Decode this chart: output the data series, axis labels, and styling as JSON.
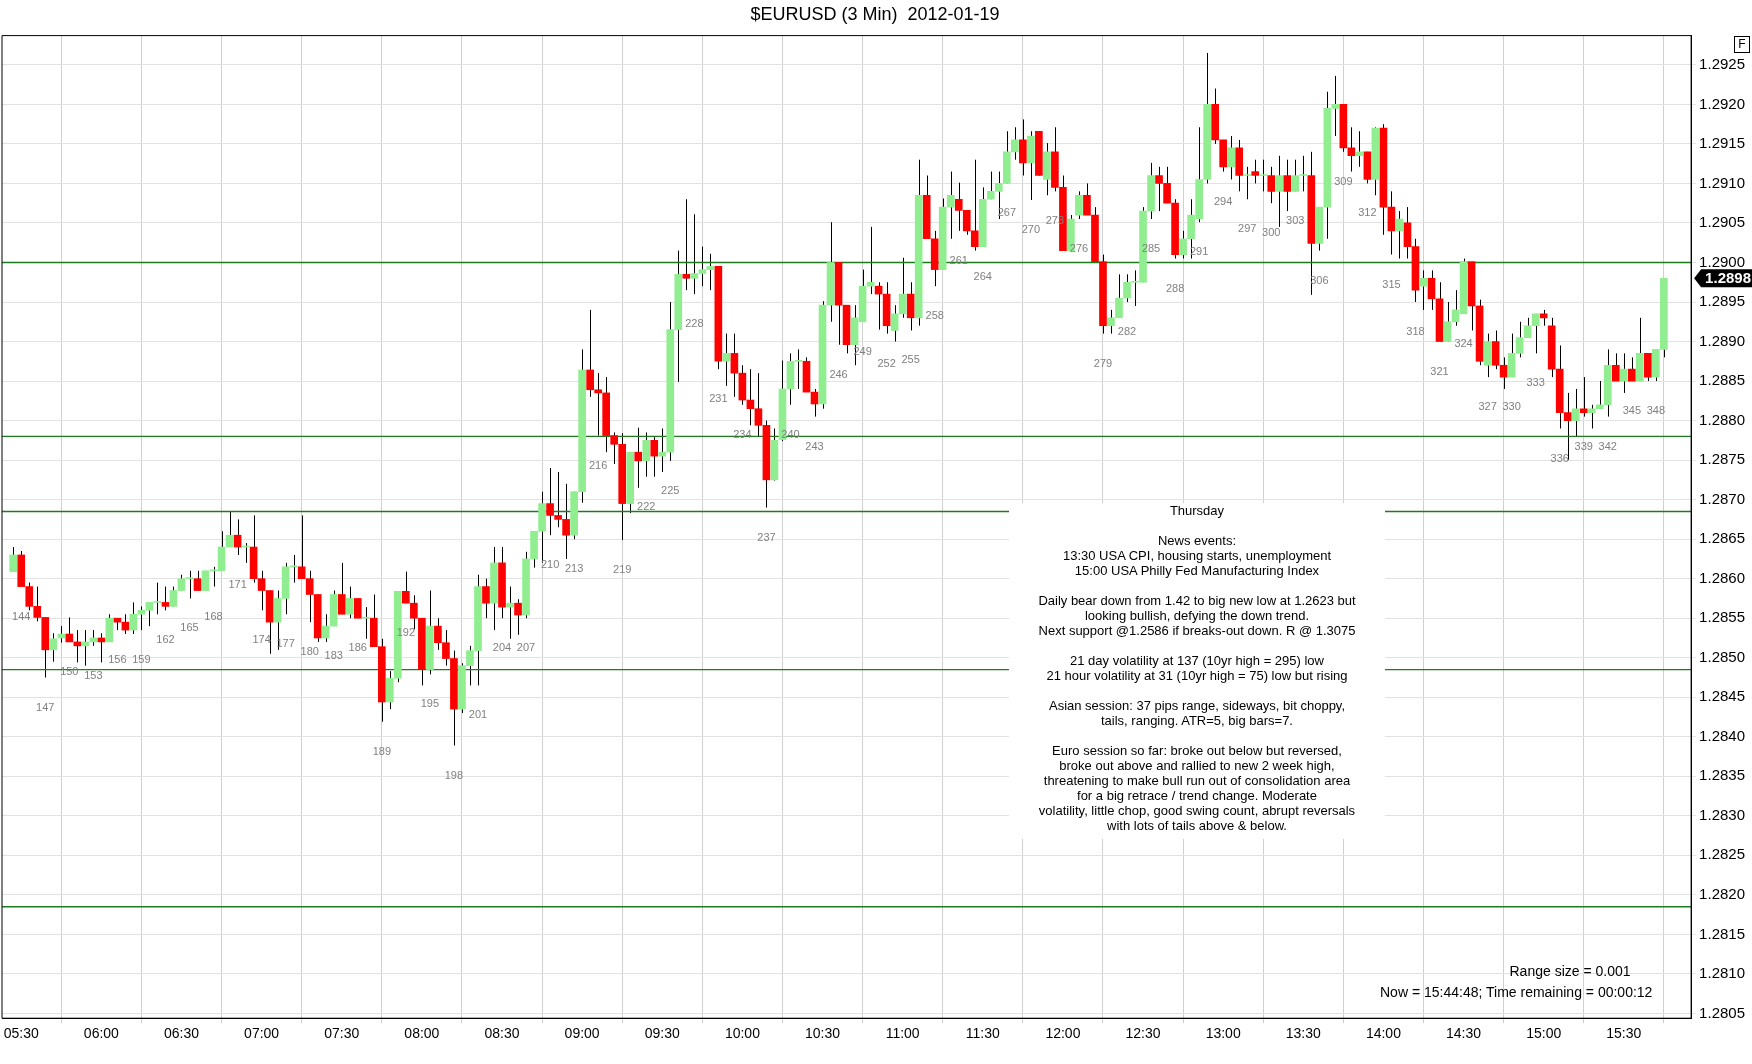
{
  "chart_data": {
    "type": "candlestick",
    "title": "$EURUSD (3 Min)  2012-01-19",
    "xlim": [
      5.38,
      15.92
    ],
    "xticks": [
      {
        "value": 5.5,
        "label": "05:30"
      },
      {
        "value": 6,
        "label": "06:00"
      },
      {
        "value": 6.5,
        "label": "06:30"
      },
      {
        "value": 7,
        "label": "07:00"
      },
      {
        "value": 7.5,
        "label": "07:30"
      },
      {
        "value": 8,
        "label": "08:00"
      },
      {
        "value": 8.5,
        "label": "08:30"
      },
      {
        "value": 9,
        "label": "09:00"
      },
      {
        "value": 9.5,
        "label": "09:30"
      },
      {
        "value": 10,
        "label": "10:00"
      },
      {
        "value": 10.5,
        "label": "10:30"
      },
      {
        "value": 11,
        "label": "11:00"
      },
      {
        "value": 11.5,
        "label": "11:30"
      },
      {
        "value": 12,
        "label": "12:00"
      },
      {
        "value": 12.5,
        "label": "12:30"
      },
      {
        "value": 13,
        "label": "13:00"
      },
      {
        "value": 13.5,
        "label": "13:30"
      },
      {
        "value": 14,
        "label": "14:00"
      },
      {
        "value": 14.5,
        "label": "14:30"
      },
      {
        "value": 15,
        "label": "15:00"
      },
      {
        "value": 15.5,
        "label": "15:30"
      }
    ],
    "ylim": [
      1.28044,
      1.29287
    ],
    "yticks": [
      1.2805,
      {
        "value": 1.281,
        "label": "1.2810"
      },
      1.2815,
      {
        "value": 1.282,
        "label": "1.2820"
      },
      1.2825,
      {
        "value": 1.283,
        "label": "1.2830"
      },
      1.2835,
      {
        "value": 1.284,
        "label": "1.2840"
      },
      1.2845,
      {
        "value": 1.285,
        "label": "1.2850"
      },
      1.2855,
      {
        "value": 1.286,
        "label": "1.2860"
      },
      1.2865,
      {
        "value": 1.287,
        "label": "1.2870"
      },
      1.2875,
      {
        "value": 1.288,
        "label": "1.2880"
      },
      1.2885,
      {
        "value": 1.289,
        "label": "1.2890"
      },
      1.2895,
      {
        "value": 1.29,
        "label": "1.2900"
      },
      1.2905,
      {
        "value": 1.291,
        "label": "1.2910"
      },
      1.2915,
      {
        "value": 1.292,
        "label": "1.2920"
      },
      1.2925
    ],
    "grid": true,
    "legend": false,
    "ref_lines": [
      {
        "axis": "y",
        "value": 1.29,
        "color": "#1e7b1e"
      },
      {
        "axis": "y",
        "value": 1.2878,
        "color": "#1e7b1e"
      },
      {
        "axis": "y",
        "value": 1.28685,
        "color": "#1e7b1e"
      },
      {
        "axis": "y",
        "value": 1.28485,
        "color": "#1e7b1e"
      },
      {
        "axis": "y",
        "value": 1.28185,
        "color": "#1e7b1e"
      }
    ],
    "series": [
      {
        "color": "#90ee90",
        "x": [
          5.45,
          5.7,
          5.75,
          5.9,
          5.95,
          6.05,
          6.2,
          6.25,
          6.3,
          6.35,
          6.45,
          6.5,
          6.55,
          6.65,
          6.7,
          6.75,
          6.8,
          6.9,
          7.1,
          7.15,
          7.2,
          7.4,
          7.45,
          7.55,
          7.65,
          7.8,
          7.85,
          8.05,
          8.25,
          8.3,
          8.35,
          8.45,
          8.55,
          8.65,
          8.7,
          8.75,
          8.95,
          9.0,
          9.3,
          9.4,
          9.5,
          9.55,
          9.6,
          9.7,
          9.75,
          9.8,
          9.9,
          10.2,
          10.25,
          10.3,
          10.35,
          10.5,
          10.55,
          10.7,
          10.75,
          10.8,
          10.95,
          11.0,
          11.1,
          11.25,
          11.3,
          11.5,
          11.55,
          11.6,
          11.65,
          11.7,
          11.8,
          11.9,
          12.05,
          12.1,
          12.3,
          12.35,
          12.4,
          12.45,
          12.5,
          12.55,
          12.75,
          12.8,
          12.85,
          12.9,
          13.05,
          13.15,
          13.25,
          13.35,
          13.45,
          13.5,
          13.6,
          13.65,
          13.7,
          13.85,
          13.95,
          14.1,
          14.25,
          14.4,
          14.45,
          14.5,
          14.65,
          14.8,
          14.85,
          14.9,
          14.95,
          15.2,
          15.3,
          15.35,
          15.4,
          15.5,
          15.6,
          15.7,
          15.75
        ],
        "ohlc": [
          [
            1.28609,
            1.2864,
            1.28609,
            1.2863
          ],
          [
            1.2851,
            1.28531,
            1.28495,
            1.28524
          ],
          [
            1.28525,
            1.2854,
            1.28519,
            1.2853
          ],
          [
            1.28515,
            1.28535,
            1.2849,
            1.2852
          ],
          [
            1.2852,
            1.28535,
            1.28515,
            1.28525
          ],
          [
            1.2852,
            1.28555,
            1.2852,
            1.2855
          ],
          [
            1.28535,
            1.2857,
            1.2853,
            1.28555
          ],
          [
            1.28555,
            1.28565,
            1.28535,
            1.2856
          ],
          [
            1.2856,
            1.2857,
            1.2854,
            1.2857
          ],
          [
            1.2857,
            1.28595,
            1.28555,
            1.2857
          ],
          [
            1.28565,
            1.2859,
            1.28565,
            1.28585
          ],
          [
            1.28585,
            1.28605,
            1.28585,
            1.286
          ],
          [
            1.286,
            1.2861,
            1.28575,
            1.286
          ],
          [
            1.28585,
            1.2861,
            1.28585,
            1.2861
          ],
          [
            1.2861,
            1.28615,
            1.2859,
            1.2861
          ],
          [
            1.2861,
            1.2866,
            1.2861,
            1.2864
          ],
          [
            1.2864,
            1.28685,
            1.2864,
            1.28655
          ],
          [
            1.2864,
            1.28645,
            1.2862,
            1.2864
          ],
          [
            1.28545,
            1.28585,
            1.2851,
            1.28575
          ],
          [
            1.28575,
            1.2862,
            1.28555,
            1.28615
          ],
          [
            1.28615,
            1.2863,
            1.28595,
            1.28615
          ],
          [
            1.28525,
            1.28555,
            1.2852,
            1.2854
          ],
          [
            1.2854,
            1.28585,
            1.2854,
            1.2858
          ],
          [
            1.28555,
            1.2859,
            1.2855,
            1.28575
          ],
          [
            1.2855,
            1.28564,
            1.28524,
            1.2855
          ],
          [
            1.28444,
            1.28483,
            1.28435,
            1.28474
          ],
          [
            1.28474,
            1.28584,
            1.28469,
            1.28584
          ],
          [
            1.28485,
            1.28585,
            1.28479,
            1.2854
          ],
          [
            1.28435,
            1.28493,
            1.2843,
            1.2849
          ],
          [
            1.2849,
            1.28515,
            1.28465,
            1.28509
          ],
          [
            1.28509,
            1.28605,
            1.28465,
            1.2859
          ],
          [
            1.28569,
            1.2864,
            1.28535,
            1.2862
          ],
          [
            1.28564,
            1.2859,
            1.28524,
            1.28569
          ],
          [
            1.28554,
            1.28634,
            1.2855,
            1.28625
          ],
          [
            1.28625,
            1.2866,
            1.28614,
            1.2866
          ],
          [
            1.2866,
            1.2871,
            1.2862,
            1.28695
          ],
          [
            1.28655,
            1.2871,
            1.2865,
            1.2871
          ],
          [
            1.2871,
            1.2889,
            1.28696,
            1.28864
          ],
          [
            1.28695,
            1.2876,
            1.28683,
            1.2876
          ],
          [
            1.28749,
            1.28785,
            1.28729,
            1.28775
          ],
          [
            1.28755,
            1.2879,
            1.28735,
            1.2876
          ],
          [
            1.2876,
            1.2895,
            1.28749,
            1.28915
          ],
          [
            1.28915,
            1.29015,
            1.28849,
            1.28985
          ],
          [
            1.2898,
            1.29061,
            1.2896,
            1.28986
          ],
          [
            1.28986,
            1.2902,
            1.2897,
            1.28991
          ],
          [
            1.28991,
            1.29011,
            1.28965,
            1.28995
          ],
          [
            1.28875,
            1.2891,
            1.28844,
            1.28885
          ],
          [
            1.28725,
            1.2879,
            1.28724,
            1.28775
          ],
          [
            1.28776,
            1.28876,
            1.28774,
            1.2884
          ],
          [
            1.2884,
            1.28885,
            1.2882,
            1.28875
          ],
          [
            1.28875,
            1.2889,
            1.2884,
            1.28875
          ],
          [
            1.28821,
            1.28951,
            1.28815,
            1.28946
          ],
          [
            1.28946,
            1.29051,
            1.28925,
            1.29
          ],
          [
            1.28896,
            1.28946,
            1.2887,
            1.2893
          ],
          [
            1.28925,
            1.28991,
            1.28925,
            1.2897
          ],
          [
            1.2897,
            1.29045,
            1.2896,
            1.28975
          ],
          [
            1.28914,
            1.28946,
            1.289,
            1.28935
          ],
          [
            1.28935,
            1.29006,
            1.2893,
            1.2896
          ],
          [
            1.2893,
            1.2913,
            1.2892,
            1.29085
          ],
          [
            1.28991,
            1.29081,
            1.28991,
            1.2907
          ],
          [
            1.2907,
            1.29115,
            1.2903,
            1.29085
          ],
          [
            1.2902,
            1.29095,
            1.2902,
            1.2908
          ],
          [
            1.2908,
            1.29115,
            1.2908,
            1.2909
          ],
          [
            1.2909,
            1.29115,
            1.29055,
            1.291
          ],
          [
            1.291,
            1.29166,
            1.291,
            1.2914
          ],
          [
            1.2914,
            1.29171,
            1.2913,
            1.29155
          ],
          [
            1.29126,
            1.29166,
            1.29079,
            1.2916
          ],
          [
            1.29105,
            1.29151,
            1.29085,
            1.2914
          ],
          [
            1.29015,
            1.2906,
            1.29015,
            1.29055
          ],
          [
            1.2906,
            1.2909,
            1.29055,
            1.29085
          ],
          [
            1.2892,
            1.2894,
            1.2891,
            1.2893
          ],
          [
            1.2893,
            1.28985,
            1.2893,
            1.28955
          ],
          [
            1.28955,
            1.28985,
            1.2895,
            1.28975
          ],
          [
            1.28975,
            1.2899,
            1.28945,
            1.28975
          ],
          [
            1.28975,
            1.2907,
            1.28975,
            1.29065
          ],
          [
            1.29065,
            1.29126,
            1.29055,
            1.2911
          ],
          [
            1.2901,
            1.2904,
            1.29005,
            1.2903
          ],
          [
            1.2903,
            1.2908,
            1.29005,
            1.2906
          ],
          [
            1.29055,
            1.29171,
            1.29051,
            1.29105
          ],
          [
            1.29105,
            1.29265,
            1.291,
            1.292
          ],
          [
            1.29121,
            1.2916,
            1.29105,
            1.29145
          ],
          [
            1.2911,
            1.29121,
            1.2908,
            1.2911
          ],
          [
            1.2911,
            1.2913,
            1.2909,
            1.2911
          ],
          [
            1.2909,
            1.29135,
            1.29045,
            1.2911
          ],
          [
            1.2909,
            1.2913,
            1.2909,
            1.2911
          ],
          [
            1.2911,
            1.29135,
            1.2909,
            1.2911
          ],
          [
            1.29024,
            1.2907,
            1.29015,
            1.2907
          ],
          [
            1.2907,
            1.29216,
            1.2903,
            1.29195
          ],
          [
            1.29195,
            1.29236,
            1.2916,
            1.292
          ],
          [
            1.29135,
            1.29166,
            1.29121,
            1.2914
          ],
          [
            1.29105,
            1.29171,
            1.29085,
            1.2917
          ],
          [
            1.2904,
            1.29065,
            1.29005,
            1.29055
          ],
          [
            1.2897,
            1.2899,
            1.2894,
            1.2898
          ],
          [
            1.289,
            1.2895,
            1.289,
            1.28925
          ],
          [
            1.28925,
            1.28965,
            1.2892,
            1.2894
          ],
          [
            1.28935,
            1.29005,
            1.28935,
            1.29001
          ],
          [
            1.2887,
            1.2891,
            1.28855,
            1.289
          ],
          [
            1.28855,
            1.2891,
            1.28855,
            1.28885
          ],
          [
            1.28885,
            1.28925,
            1.2888,
            1.28905
          ],
          [
            1.28905,
            1.2893,
            1.28905,
            1.2892
          ],
          [
            1.2892,
            1.28935,
            1.28885,
            1.28935
          ],
          [
            1.288,
            1.2884,
            1.2878,
            1.28815
          ],
          [
            1.2881,
            1.2882,
            1.2879,
            1.28815
          ],
          [
            1.28815,
            1.2885,
            1.28815,
            1.2882
          ],
          [
            1.2882,
            1.2889,
            1.28805,
            1.2887
          ],
          [
            1.2885,
            1.28885,
            1.28835,
            1.28865
          ],
          [
            1.2885,
            1.2893,
            1.2885,
            1.28885
          ],
          [
            1.28855,
            1.2889,
            1.2885,
            1.2889
          ],
          [
            1.2889,
            1.2898,
            1.2888,
            1.2898
          ]
        ]
      },
      {
        "color": "#ff0000",
        "x": [
          5.5,
          5.55,
          5.6,
          5.65,
          5.8,
          5.85,
          6.0,
          6.1,
          6.15,
          6.4,
          6.6,
          6.85,
          6.95,
          7.0,
          7.05,
          7.25,
          7.3,
          7.35,
          7.5,
          7.6,
          7.7,
          7.75,
          7.9,
          7.95,
          8.0,
          8.1,
          8.15,
          8.2,
          8.4,
          8.5,
          8.6,
          8.8,
          8.85,
          8.9,
          9.05,
          9.1,
          9.15,
          9.2,
          9.25,
          9.35,
          9.45,
          9.65,
          9.85,
          9.95,
          10.0,
          10.05,
          10.1,
          10.15,
          10.4,
          10.45,
          10.6,
          10.65,
          10.85,
          10.9,
          11.05,
          11.15,
          11.2,
          11.35,
          11.4,
          11.45,
          11.75,
          11.85,
          11.95,
          12.0,
          12.15,
          12.2,
          12.25,
          12.6,
          12.65,
          12.7,
          12.95,
          13.0,
          13.1,
          13.2,
          13.3,
          13.4,
          13.55,
          13.75,
          13.8,
          13.9,
          14.0,
          14.05,
          14.15,
          14.2,
          14.3,
          14.35,
          14.55,
          14.6,
          14.7,
          14.75,
          15.0,
          15.05,
          15.1,
          15.15,
          15.25,
          15.45,
          15.55,
          15.65
        ],
        "ohlc": [
          [
            1.2863,
            1.28635,
            1.2859,
            1.2859
          ],
          [
            1.2859,
            1.28595,
            1.2856,
            1.28565
          ],
          [
            1.28565,
            1.2859,
            1.28546,
            1.28551
          ],
          [
            1.28551,
            1.28551,
            1.28475,
            1.2851
          ],
          [
            1.2853,
            1.28551,
            1.2852,
            1.2852
          ],
          [
            1.2852,
            1.28535,
            1.28494,
            1.28515
          ],
          [
            1.28525,
            1.28531,
            1.28494,
            1.2852
          ],
          [
            1.2855,
            1.2855,
            1.28535,
            1.28545
          ],
          [
            1.28545,
            1.28555,
            1.2853,
            1.28535
          ],
          [
            1.2857,
            1.2859,
            1.2856,
            1.28565
          ],
          [
            1.286,
            1.2861,
            1.28585,
            1.28585
          ],
          [
            1.28655,
            1.28675,
            1.2863,
            1.2864
          ],
          [
            1.2864,
            1.2868,
            1.28595,
            1.286
          ],
          [
            1.286,
            1.2861,
            1.2856,
            1.28585
          ],
          [
            1.28585,
            1.28585,
            1.28505,
            1.28545
          ],
          [
            1.28615,
            1.2868,
            1.286,
            1.286
          ],
          [
            1.286,
            1.2861,
            1.28545,
            1.2858
          ],
          [
            1.2858,
            1.2858,
            1.2852,
            1.28525
          ],
          [
            1.2858,
            1.2862,
            1.28555,
            1.28555
          ],
          [
            1.28575,
            1.28575,
            1.2855,
            1.2855
          ],
          [
            1.2855,
            1.2858,
            1.28514,
            1.28514
          ],
          [
            1.28514,
            1.28524,
            1.28419,
            1.28444
          ],
          [
            1.28584,
            1.28609,
            1.28569,
            1.28569
          ],
          [
            1.28569,
            1.28579,
            1.28536,
            1.2855
          ],
          [
            1.2855,
            1.2855,
            1.28465,
            1.28485
          ],
          [
            1.2854,
            1.2855,
            1.2851,
            1.28519
          ],
          [
            1.28519,
            1.28535,
            1.2849,
            1.28499
          ],
          [
            1.28499,
            1.28509,
            1.28389,
            1.28435
          ],
          [
            1.2859,
            1.286,
            1.2855,
            1.28569
          ],
          [
            1.2862,
            1.2864,
            1.2855,
            1.28564
          ],
          [
            1.28569,
            1.28574,
            1.28529,
            1.28554
          ],
          [
            1.28695,
            1.2874,
            1.28655,
            1.2868
          ],
          [
            1.2868,
            1.28735,
            1.28665,
            1.28675
          ],
          [
            1.28675,
            1.2872,
            1.28625,
            1.28655
          ],
          [
            1.28864,
            1.2894,
            1.2883,
            1.28839
          ],
          [
            1.28839,
            1.2886,
            1.28781,
            1.28835
          ],
          [
            1.28835,
            1.28855,
            1.2876,
            1.28781
          ],
          [
            1.28781,
            1.28785,
            1.28745,
            1.2877
          ],
          [
            1.2877,
            1.28784,
            1.28649,
            1.28695
          ],
          [
            1.2876,
            1.28791,
            1.28715,
            1.28749
          ],
          [
            1.28775,
            1.28779,
            1.28729,
            1.28755
          ],
          [
            1.28985,
            1.2908,
            1.28965,
            1.2898
          ],
          [
            1.28995,
            1.28995,
            1.28865,
            1.28875
          ],
          [
            1.28885,
            1.2891,
            1.2883,
            1.2886
          ],
          [
            1.2886,
            1.2887,
            1.2882,
            1.28826
          ],
          [
            1.28826,
            1.28865,
            1.28794,
            1.28815
          ],
          [
            1.28815,
            1.2886,
            1.2878,
            1.28794
          ],
          [
            1.28794,
            1.288,
            1.2869,
            1.28725
          ],
          [
            1.28875,
            1.2888,
            1.28836,
            1.28836
          ],
          [
            1.28836,
            1.2884,
            1.28805,
            1.28821
          ],
          [
            1.29,
            1.29,
            1.28896,
            1.28946
          ],
          [
            1.28946,
            1.28946,
            1.28885,
            1.28896
          ],
          [
            1.2897,
            1.28975,
            1.28915,
            1.2896
          ],
          [
            1.2896,
            1.28975,
            1.2891,
            1.2892
          ],
          [
            1.2896,
            1.28975,
            1.28914,
            1.2893
          ],
          [
            1.29085,
            1.2911,
            1.2903,
            1.2903
          ],
          [
            1.2903,
            1.2904,
            1.2897,
            1.28991
          ],
          [
            1.2908,
            1.29101,
            1.2904,
            1.29066
          ],
          [
            1.29066,
            1.29066,
            1.29035,
            1.2904
          ],
          [
            1.2904,
            1.2913,
            1.29015,
            1.2902
          ],
          [
            1.29155,
            1.29181,
            1.2911,
            1.29126
          ],
          [
            1.29166,
            1.29166,
            1.2911,
            1.2911
          ],
          [
            1.2914,
            1.29171,
            1.2909,
            1.29095
          ],
          [
            1.29095,
            1.2911,
            1.29015,
            1.29015
          ],
          [
            1.29085,
            1.291,
            1.2906,
            1.2906
          ],
          [
            1.2906,
            1.2907,
            1.29001,
            1.29001
          ],
          [
            1.29001,
            1.2901,
            1.2891,
            1.2892
          ],
          [
            1.2911,
            1.29121,
            1.29065,
            1.291
          ],
          [
            1.291,
            1.29121,
            1.29075,
            1.29075
          ],
          [
            1.29075,
            1.2908,
            1.29005,
            1.2901
          ],
          [
            1.292,
            1.2922,
            1.2915,
            1.29155
          ],
          [
            1.29155,
            1.29155,
            1.29115,
            1.29121
          ],
          [
            1.29145,
            1.29155,
            1.2909,
            1.2911
          ],
          [
            1.29115,
            1.2913,
            1.291,
            1.2911
          ],
          [
            1.2911,
            1.29121,
            1.29075,
            1.2909
          ],
          [
            1.2911,
            1.2913,
            1.29065,
            1.2909
          ],
          [
            1.2911,
            1.2914,
            1.28959,
            1.29024
          ],
          [
            1.292,
            1.292,
            1.2914,
            1.29145
          ],
          [
            1.29145,
            1.29171,
            1.29115,
            1.29135
          ],
          [
            1.2914,
            1.2914,
            1.291,
            1.29105
          ],
          [
            1.2917,
            1.29175,
            1.29035,
            1.2907
          ],
          [
            1.2907,
            1.2909,
            1.2901,
            1.2904
          ],
          [
            1.2905,
            1.2907,
            1.29005,
            1.2902
          ],
          [
            1.2902,
            1.2903,
            1.2895,
            1.28965
          ],
          [
            1.2898,
            1.2899,
            1.2894,
            1.28954
          ],
          [
            1.28954,
            1.28975,
            1.289,
            1.289
          ],
          [
            1.29001,
            1.29001,
            1.28914,
            1.28945
          ],
          [
            1.28945,
            1.28953,
            1.2887,
            1.28875
          ],
          [
            1.289,
            1.28914,
            1.28865,
            1.2887
          ],
          [
            1.2887,
            1.2888,
            1.2884,
            1.28855
          ],
          [
            1.28935,
            1.2894,
            1.2892,
            1.2893
          ],
          [
            1.2892,
            1.2893,
            1.28855,
            1.28865
          ],
          [
            1.28865,
            1.28895,
            1.2879,
            1.2881
          ],
          [
            1.2881,
            1.28835,
            1.2875,
            1.288
          ],
          [
            1.28815,
            1.28855,
            1.28805,
            1.2881
          ],
          [
            1.2887,
            1.28885,
            1.2885,
            1.2885
          ],
          [
            1.28865,
            1.2888,
            1.2885,
            1.2885
          ],
          [
            1.28885,
            1.28885,
            1.2885,
            1.28855
          ]
        ]
      }
    ],
    "annotations": [
      {
        "text": "144",
        "x": 5.5,
        "y": 1.2859
      },
      {
        "text": "147",
        "x": 5.65,
        "y": 1.28475
      },
      {
        "text": "150",
        "x": 5.8,
        "y": 1.2852
      },
      {
        "text": "153",
        "x": 5.95,
        "y": 1.28515
      },
      {
        "text": "156",
        "x": 6.1,
        "y": 1.28535
      },
      {
        "text": "159",
        "x": 6.25,
        "y": 1.28535
      },
      {
        "text": "162",
        "x": 6.4,
        "y": 1.2856
      },
      {
        "text": "165",
        "x": 6.55,
        "y": 1.28575
      },
      {
        "text": "168",
        "x": 6.7,
        "y": 1.2859
      },
      {
        "text": "171",
        "x": 6.85,
        "y": 1.2863
      },
      {
        "text": "174",
        "x": 7.0,
        "y": 1.2856
      },
      {
        "text": "177",
        "x": 7.15,
        "y": 1.28555
      },
      {
        "text": "180",
        "x": 7.3,
        "y": 1.28545
      },
      {
        "text": "183",
        "x": 7.45,
        "y": 1.2854
      },
      {
        "text": "186",
        "x": 7.6,
        "y": 1.2855
      },
      {
        "text": "189",
        "x": 7.75,
        "y": 1.28419
      },
      {
        "text": "192",
        "x": 7.9,
        "y": 1.28569
      },
      {
        "text": "195",
        "x": 8.05,
        "y": 1.28479
      },
      {
        "text": "198",
        "x": 8.2,
        "y": 1.28389
      },
      {
        "text": "201",
        "x": 8.35,
        "y": 1.28465
      },
      {
        "text": "204",
        "x": 8.5,
        "y": 1.2855
      },
      {
        "text": "207",
        "x": 8.65,
        "y": 1.2855
      },
      {
        "text": "210",
        "x": 8.8,
        "y": 1.28655
      },
      {
        "text": "213",
        "x": 8.95,
        "y": 1.2865
      },
      {
        "text": "216",
        "x": 9.1,
        "y": 1.28781
      },
      {
        "text": "219",
        "x": 9.25,
        "y": 1.28649
      },
      {
        "text": "222",
        "x": 9.4,
        "y": 1.28729
      },
      {
        "text": "225",
        "x": 9.55,
        "y": 1.28749
      },
      {
        "text": "228",
        "x": 9.7,
        "y": 1.2896
      },
      {
        "text": "231",
        "x": 9.85,
        "y": 1.28865
      },
      {
        "text": "234",
        "x": 10.0,
        "y": 1.2882
      },
      {
        "text": "237",
        "x": 10.15,
        "y": 1.2869
      },
      {
        "text": "240",
        "x": 10.3,
        "y": 1.2882
      },
      {
        "text": "243",
        "x": 10.45,
        "y": 1.28805
      },
      {
        "text": "246",
        "x": 10.6,
        "y": 1.28896
      },
      {
        "text": "249",
        "x": 10.75,
        "y": 1.28925
      },
      {
        "text": "252",
        "x": 10.9,
        "y": 1.2891
      },
      {
        "text": "255",
        "x": 11.05,
        "y": 1.28914
      },
      {
        "text": "258",
        "x": 11.2,
        "y": 1.2897
      },
      {
        "text": "261",
        "x": 11.35,
        "y": 1.2904
      },
      {
        "text": "264",
        "x": 11.5,
        "y": 1.2902
      },
      {
        "text": "267",
        "x": 11.65,
        "y": 1.291
      },
      {
        "text": "270",
        "x": 11.8,
        "y": 1.29079
      },
      {
        "text": "273",
        "x": 11.95,
        "y": 1.2909
      },
      {
        "text": "276",
        "x": 12.1,
        "y": 1.29055
      },
      {
        "text": "279",
        "x": 12.25,
        "y": 1.2891
      },
      {
        "text": "282",
        "x": 12.4,
        "y": 1.2895
      },
      {
        "text": "285",
        "x": 12.55,
        "y": 1.29055
      },
      {
        "text": "288",
        "x": 12.7,
        "y": 1.29005
      },
      {
        "text": "291",
        "x": 12.85,
        "y": 1.29051
      },
      {
        "text": "294",
        "x": 13.0,
        "y": 1.29115
      },
      {
        "text": "297",
        "x": 13.15,
        "y": 1.2908
      },
      {
        "text": "300",
        "x": 13.3,
        "y": 1.29075
      },
      {
        "text": "303",
        "x": 13.45,
        "y": 1.2909
      },
      {
        "text": "306",
        "x": 13.6,
        "y": 1.29015
      },
      {
        "text": "309",
        "x": 13.75,
        "y": 1.2914
      },
      {
        "text": "312",
        "x": 13.9,
        "y": 1.291
      },
      {
        "text": "315",
        "x": 14.05,
        "y": 1.2901
      },
      {
        "text": "318",
        "x": 14.2,
        "y": 1.2895
      },
      {
        "text": "321",
        "x": 14.35,
        "y": 1.289
      },
      {
        "text": "324",
        "x": 14.5,
        "y": 1.28935
      },
      {
        "text": "327",
        "x": 14.65,
        "y": 1.28855
      },
      {
        "text": "330",
        "x": 14.8,
        "y": 1.28855
      },
      {
        "text": "333",
        "x": 14.95,
        "y": 1.28885
      },
      {
        "text": "336",
        "x": 15.1,
        "y": 1.2879
      },
      {
        "text": "339",
        "x": 15.25,
        "y": 1.28805
      },
      {
        "text": "342",
        "x": 15.4,
        "y": 1.28805
      },
      {
        "text": "345",
        "x": 15.55,
        "y": 1.2885
      },
      {
        "text": "348",
        "x": 15.7,
        "y": 1.2885
      },
      "Thursday",
      "News events:\n13:30 USA CPI, housing starts, unemployment\n15:00 USA Philly Fed Manufacturing Index",
      "Daily bear down from 1.42 to big new low at 1.2623 but\nlooking bullish, defying the down trend.\nNext support @1.2586 if breaks-out down. R @ 1.3075",
      "21 day volatility at 137 (10yr high = 295) low\n21 hour volatility at 31 (10yr high = 75) low but rising",
      "Asian session: 37 pips range, sideways, bit choppy,\ntails, ranging. ATR=5, big bars=7.",
      "Euro session so far: broke out below but reversed,\nbroke out above and rallied to new 2 week high,\nthreatening to make bull run out of consolidation area\nfor a big retrace / trend change. Moderate\nvolatility, little chop, good swing count, abrupt reversals\nwith lots of tails above & below.",
      "Range size = 0.001",
      "Now = 15:44:48; Time remaining = 00:00:12",
      "1.2898",
      "F"
    ]
  }
}
